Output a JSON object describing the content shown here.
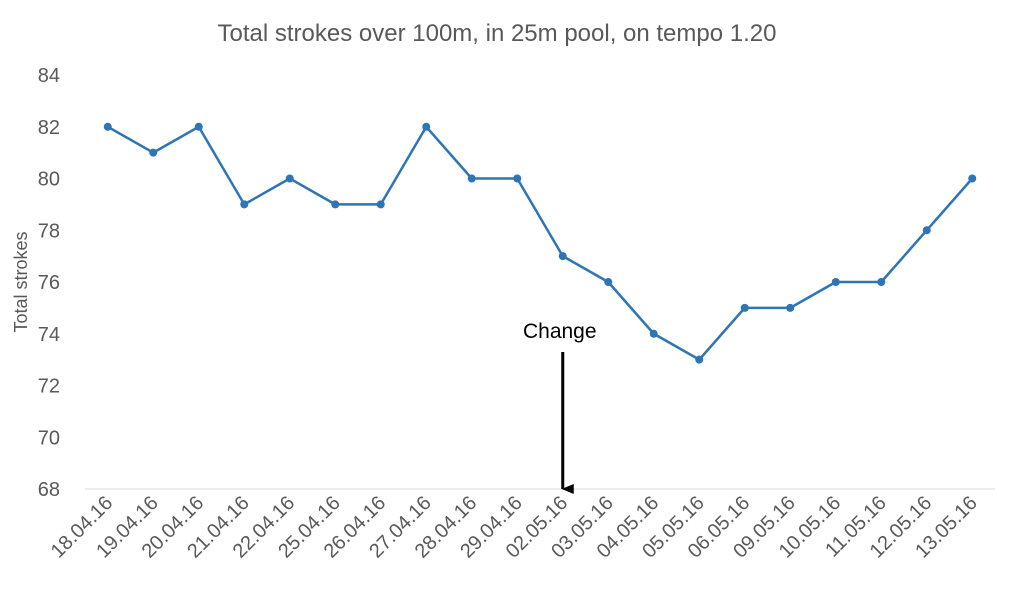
{
  "chart_data": {
    "type": "line",
    "title": "Total strokes over 100m, in 25m pool, on tempo 1.20",
    "xlabel": "",
    "ylabel": "Total strokes",
    "ylim": [
      68,
      84
    ],
    "yticks": [
      68,
      70,
      72,
      74,
      76,
      78,
      80,
      82,
      84
    ],
    "grid": false,
    "legend": "none",
    "categories": [
      "18.04.16",
      "19.04.16",
      "20.04.16",
      "21.04.16",
      "22.04.16",
      "25.04.16",
      "26.04.16",
      "27.04.16",
      "28.04.16",
      "29.04.16",
      "02.05.16",
      "03.05.16",
      "04.05.16",
      "05.05.16",
      "06.05.16",
      "09.05.16",
      "10.05.16",
      "11.05.16",
      "12.05.16",
      "13.05.16"
    ],
    "series": [
      {
        "values": [
          82,
          81,
          82,
          79,
          80,
          79,
          79,
          82,
          80,
          80,
          77,
          76,
          74,
          73,
          75,
          75,
          76,
          76,
          78,
          80
        ]
      }
    ],
    "annotations": [
      {
        "text": "Change",
        "category": "02.05.16",
        "arrow": "down to x-axis"
      }
    ],
    "colors": {
      "line": "#2e75b6",
      "axis": "#d9d9d9",
      "text": "#595959",
      "annotation": "#000000"
    }
  }
}
